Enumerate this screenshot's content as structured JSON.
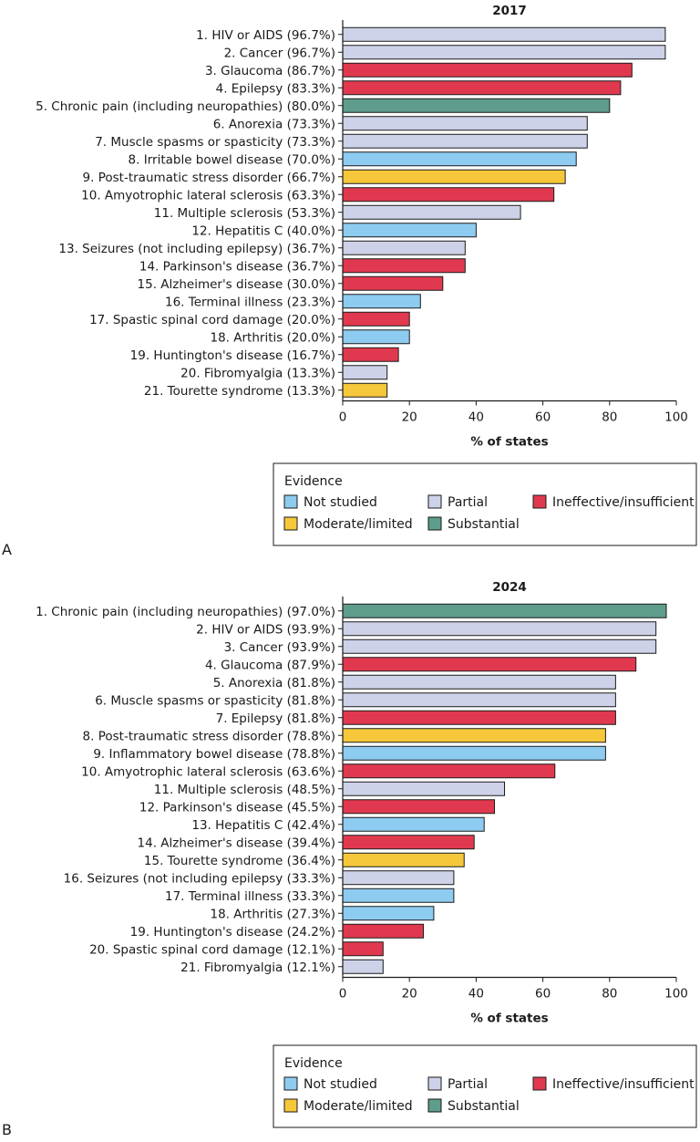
{
  "chart_data": [
    {
      "type": "bar",
      "panel_label": "A",
      "title": "2017",
      "xlabel": "% of states",
      "ylabel": "",
      "xlim": [
        0,
        100
      ],
      "xticks": [
        0,
        20,
        40,
        60,
        80,
        100
      ],
      "categories": [
        "1. HIV or AIDS (96.7%)",
        "2. Cancer (96.7%)",
        "3. Glaucoma (86.7%)",
        "4. Epilepsy (83.3%)",
        "5. Chronic pain (including neuropathies) (80.0%)",
        "6. Anorexia (73.3%)",
        "7. Muscle spasms or spasticity (73.3%)",
        "8. Irritable bowel disease (70.0%)",
        "9. Post-traumatic stress disorder (66.7%)",
        "10. Amyotrophic lateral sclerosis (63.3%)",
        "11. Multiple sclerosis (53.3%)",
        "12. Hepatitis C (40.0%)",
        "13. Seizures (not including epilepsy) (36.7%)",
        "14. Parkinson's disease (36.7%)",
        "15. Alzheimer's disease (30.0%)",
        "16. Terminal illness (23.3%)",
        "17. Spastic spinal cord damage (20.0%)",
        "18. Arthritis (20.0%)",
        "19. Huntington's disease (16.7%)",
        "20. Fibromyalgia (13.3%)",
        "21. Tourette syndrome (13.3%)"
      ],
      "values": [
        96.7,
        96.7,
        86.7,
        83.3,
        80.0,
        73.3,
        73.3,
        70.0,
        66.7,
        63.3,
        53.3,
        40.0,
        36.7,
        36.7,
        30.0,
        23.3,
        20.0,
        20.0,
        16.7,
        13.3,
        13.3
      ],
      "evidence": [
        "partial",
        "partial",
        "ineffective",
        "ineffective",
        "substantial",
        "partial",
        "partial",
        "not_studied",
        "moderate",
        "ineffective",
        "partial",
        "not_studied",
        "partial",
        "ineffective",
        "ineffective",
        "not_studied",
        "ineffective",
        "not_studied",
        "ineffective",
        "partial",
        "moderate"
      ]
    },
    {
      "type": "bar",
      "panel_label": "B",
      "title": "2024",
      "xlabel": "% of states",
      "ylabel": "",
      "xlim": [
        0,
        100
      ],
      "xticks": [
        0,
        20,
        40,
        60,
        80,
        100
      ],
      "categories": [
        "1. Chronic pain (including neuropathies) (97.0%)",
        "2. HIV or AIDS (93.9%)",
        "3. Cancer (93.9%)",
        "4. Glaucoma (87.9%)",
        "5. Anorexia (81.8%)",
        "6. Muscle spasms or spasticity (81.8%)",
        "7. Epilepsy (81.8%)",
        "8. Post-traumatic stress disorder (78.8%)",
        "9. Inflammatory bowel disease (78.8%)",
        "10. Amyotrophic lateral sclerosis (63.6%)",
        "11. Multiple sclerosis (48.5%)",
        "12. Parkinson's disease (45.5%)",
        "13. Hepatitis C (42.4%)",
        "14. Alzheimer's disease (39.4%)",
        "15. Tourette syndrome (36.4%)",
        "16. Seizures (not including epilepsy (33.3%)",
        "17. Terminal illness (33.3%)",
        "18. Arthritis (27.3%)",
        "19. Huntington's disease (24.2%)",
        "20. Spastic spinal cord damage (12.1%)",
        "21. Fibromyalgia (12.1%)"
      ],
      "values": [
        97.0,
        93.9,
        93.9,
        87.9,
        81.8,
        81.8,
        81.8,
        78.8,
        78.8,
        63.6,
        48.5,
        45.5,
        42.4,
        39.4,
        36.4,
        33.3,
        33.3,
        27.3,
        24.2,
        12.1,
        12.1
      ],
      "evidence": [
        "substantial",
        "partial",
        "partial",
        "ineffective",
        "partial",
        "partial",
        "ineffective",
        "moderate",
        "not_studied",
        "ineffective",
        "partial",
        "ineffective",
        "not_studied",
        "ineffective",
        "moderate",
        "partial",
        "not_studied",
        "not_studied",
        "ineffective",
        "ineffective",
        "partial"
      ]
    }
  ],
  "legend": {
    "title": "Evidence",
    "items": [
      {
        "key": "not_studied",
        "label": "Not studied",
        "color": "#8ecbf0"
      },
      {
        "key": "partial",
        "label": "Partial",
        "color": "#cdd2e8"
      },
      {
        "key": "ineffective",
        "label": "Ineffective/insufficient",
        "color": "#e0394f"
      },
      {
        "key": "moderate",
        "label": "Moderate/limited",
        "color": "#f6c73a"
      },
      {
        "key": "substantial",
        "label": "Substantial",
        "color": "#5e9c8c"
      }
    ]
  }
}
